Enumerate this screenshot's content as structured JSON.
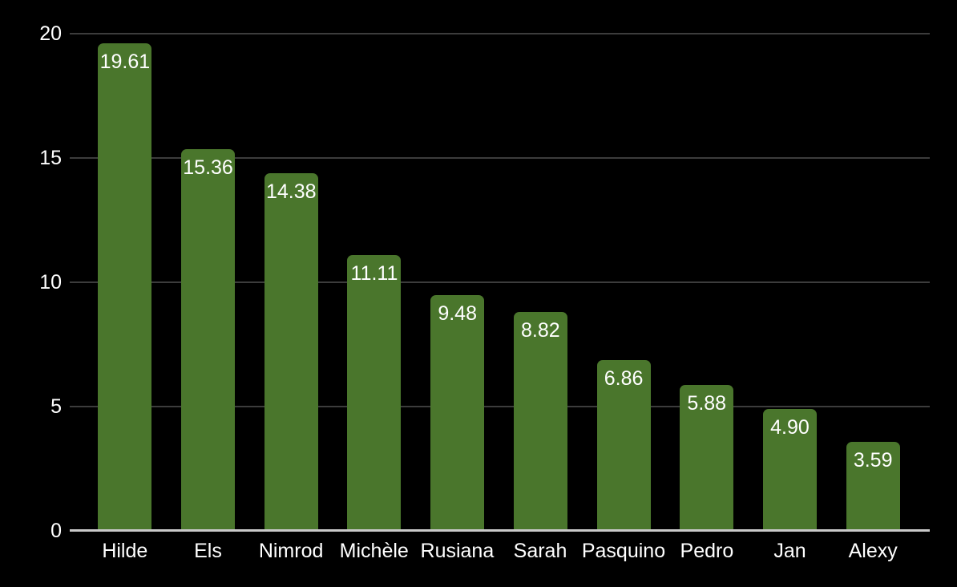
{
  "chart_data": {
    "type": "bar",
    "title": "",
    "xlabel": "",
    "ylabel": "",
    "categories": [
      "Hilde",
      "Els",
      "Nimrod",
      "Michèle",
      "Rusiana",
      "Sarah",
      "Pasquino",
      "Pedro",
      "Jan",
      "Alexy"
    ],
    "values": [
      19.61,
      15.36,
      14.38,
      11.11,
      9.48,
      8.82,
      6.86,
      5.88,
      4.9,
      3.59
    ],
    "value_labels": [
      "19.61",
      "15.36",
      "14.38",
      "11.11",
      "9.48",
      "8.82",
      "6.86",
      "5.88",
      "4.90",
      "3.59"
    ],
    "ylim": [
      0,
      20
    ],
    "yticks": [
      0,
      5,
      10,
      15,
      20
    ],
    "ytick_labels": [
      "0",
      "5",
      "10",
      "15",
      "20"
    ],
    "grid": true,
    "legend": "none",
    "colors": {
      "bar": "#4a762c",
      "background": "#000000",
      "grid_line": "#3c3c3c",
      "axis_line": "#c9c9c9",
      "text": "#ffffff"
    }
  }
}
